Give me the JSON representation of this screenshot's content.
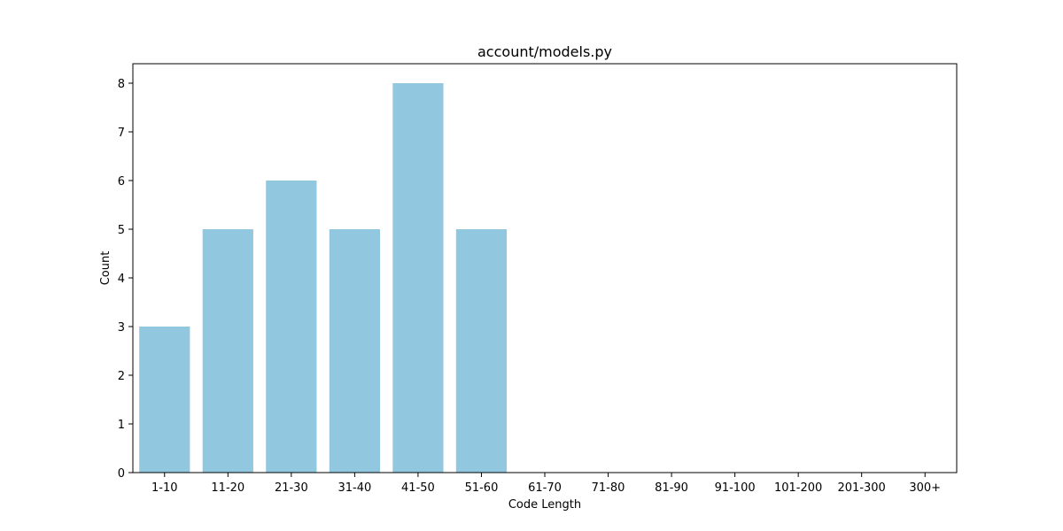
{
  "chart_data": {
    "type": "bar",
    "title": "account/models.py",
    "xlabel": "Code Length",
    "ylabel": "Count",
    "categories": [
      "1-10",
      "11-20",
      "21-30",
      "31-40",
      "41-50",
      "51-60",
      "61-70",
      "71-80",
      "81-90",
      "91-100",
      "101-200",
      "201-300",
      "300+"
    ],
    "values": [
      3,
      5,
      6,
      5,
      8,
      5,
      0,
      0,
      0,
      0,
      0,
      0,
      0
    ],
    "ylim": [
      0,
      8.4
    ],
    "yticks": [
      0,
      1,
      2,
      3,
      4,
      5,
      6,
      7,
      8
    ],
    "grid": false,
    "legend": "none",
    "bar_color": "#92c8df"
  }
}
